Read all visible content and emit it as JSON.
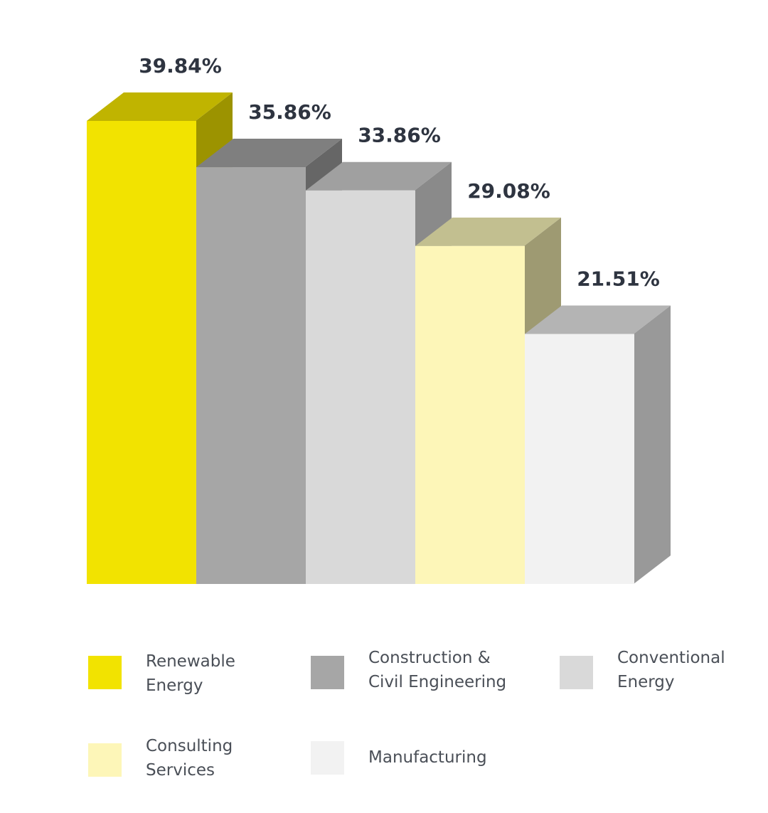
{
  "chart_data": {
    "type": "bar",
    "style": "3d",
    "categories": [
      "Renewable Energy",
      "Construction & Civil Engineering",
      "Conventional Energy",
      "Consulting Services",
      "Manufacturing"
    ],
    "values": [
      39.84,
      35.86,
      33.86,
      29.08,
      21.51
    ],
    "value_labels": [
      "39.84%",
      "35.86%",
      "33.86%",
      "29.08%",
      "21.51%"
    ],
    "unit": "%",
    "ylim": [
      0,
      39.84
    ],
    "grid": false,
    "legend_position": "bottom",
    "colors": [
      {
        "front": "#f2e300",
        "top": "#c0b400",
        "side": "#9c9300"
      },
      {
        "front": "#a6a6a6",
        "top": "#7f7f7f",
        "side": "#666666"
      },
      {
        "front": "#d9d9d9",
        "top": "#a0a0a0",
        "side": "#8a8a8a"
      },
      {
        "front": "#fdf6b8",
        "top": "#c2bf90",
        "side": "#9e9a72"
      },
      {
        "front": "#f2f2f2",
        "top": "#b4b4b4",
        "side": "#999999"
      }
    ]
  },
  "legend": [
    {
      "label": "Renewable\nEnergy",
      "color": "#f2e300"
    },
    {
      "label": "Construction &\nCivil Engineering",
      "color": "#a6a6a6"
    },
    {
      "label": "Conventional\nEnergy",
      "color": "#d9d9d9"
    },
    {
      "label": "Consulting\nServices",
      "color": "#fdf6b8"
    },
    {
      "label": "Manufacturing",
      "color": "#f2f2f2"
    }
  ]
}
